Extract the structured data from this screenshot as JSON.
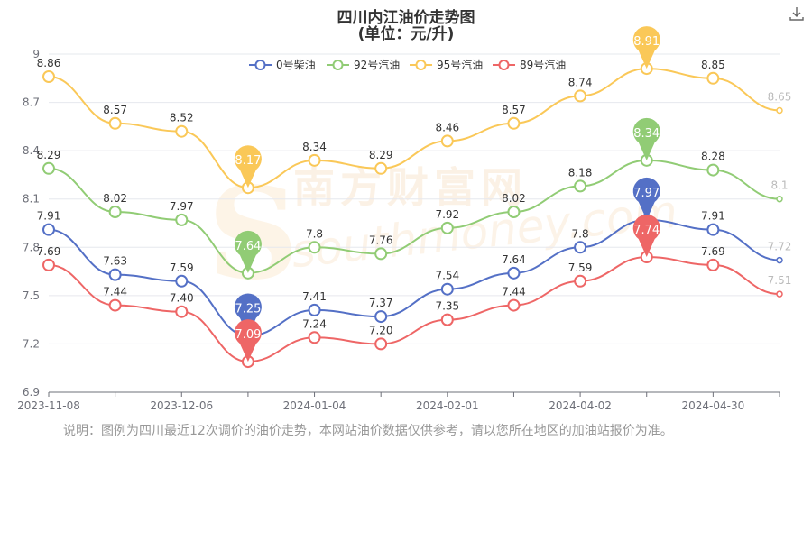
{
  "title": "四川内江油价走势图",
  "subtitle": "(单位：元/升)",
  "note": "说明：图例为四川最近12次调价的油价走势，本网站油价数据仅供参考，请以您所在地区的加油站报价为准。",
  "watermark": "南方财富网",
  "watermark_url": "southmoney.com",
  "watermark_initial": "S",
  "download_icon": "download-icon",
  "chart_data": {
    "type": "line",
    "title": "四川内江油价走势图",
    "subtitle": "(单位：元/升)",
    "ylim": [
      6.9,
      9
    ],
    "yticks": [
      "6.9",
      "7.2",
      "7.5",
      "7.8",
      "8.1",
      "8.4",
      "8.7",
      "9"
    ],
    "x_tick_labels": [
      "2023-11-08",
      "2023-12-06",
      "2024-01-04",
      "2024-02-01",
      "2024-04-02",
      "2024-04-30"
    ],
    "x_tick_indices": [
      0,
      2,
      4,
      6,
      8,
      10
    ],
    "grid": true,
    "legend_position": "top",
    "point_count": 12,
    "series": [
      {
        "name": "0号柴油",
        "color": "#5470c6",
        "values": [
          7.91,
          7.63,
          7.59,
          7.25,
          7.41,
          7.37,
          7.54,
          7.64,
          7.8,
          7.97,
          7.91,
          7.72
        ],
        "labels": [
          "7.91",
          "7.63",
          "7.59",
          "",
          "7.41",
          "7.37",
          "7.54",
          "7.64",
          "7.8",
          "",
          "7.91",
          "7.72"
        ],
        "min_marker": {
          "index": 3,
          "label": "7.25"
        },
        "max_marker": {
          "index": 9,
          "label": "7.97"
        }
      },
      {
        "name": "92号汽油",
        "color": "#91cc75",
        "values": [
          8.29,
          8.02,
          7.97,
          7.64,
          7.8,
          7.76,
          7.92,
          8.02,
          8.18,
          8.34,
          8.28,
          8.1
        ],
        "labels": [
          "8.29",
          "8.02",
          "7.97",
          "",
          "7.8",
          "7.76",
          "7.92",
          "8.02",
          "8.18",
          "",
          "8.28",
          "8.1"
        ],
        "min_marker": {
          "index": 3,
          "label": "7.64"
        },
        "max_marker": {
          "index": 9,
          "label": "8.34"
        }
      },
      {
        "name": "95号汽油",
        "color": "#fac858",
        "values": [
          8.86,
          8.57,
          8.52,
          8.17,
          8.34,
          8.29,
          8.46,
          8.57,
          8.74,
          8.91,
          8.85,
          8.65
        ],
        "labels": [
          "8.86",
          "8.57",
          "8.52",
          "",
          "8.34",
          "8.29",
          "8.46",
          "8.57",
          "8.74",
          "",
          "8.85",
          "8.65"
        ],
        "min_marker": {
          "index": 3,
          "label": "8.17"
        },
        "max_marker": {
          "index": 9,
          "label": "8.91"
        }
      },
      {
        "name": "89号汽油",
        "color": "#ee6666",
        "values": [
          7.69,
          7.44,
          7.4,
          7.09,
          7.24,
          7.2,
          7.35,
          7.44,
          7.59,
          7.74,
          7.69,
          7.51
        ],
        "labels": [
          "7.69",
          "7.44",
          "7.40",
          "",
          "7.24",
          "7.20",
          "7.35",
          "7.44",
          "7.59",
          "",
          "7.69",
          "7.51"
        ],
        "min_marker": {
          "index": 3,
          "label": "7.09"
        },
        "max_marker": {
          "index": 9,
          "label": "7.74"
        }
      }
    ]
  }
}
